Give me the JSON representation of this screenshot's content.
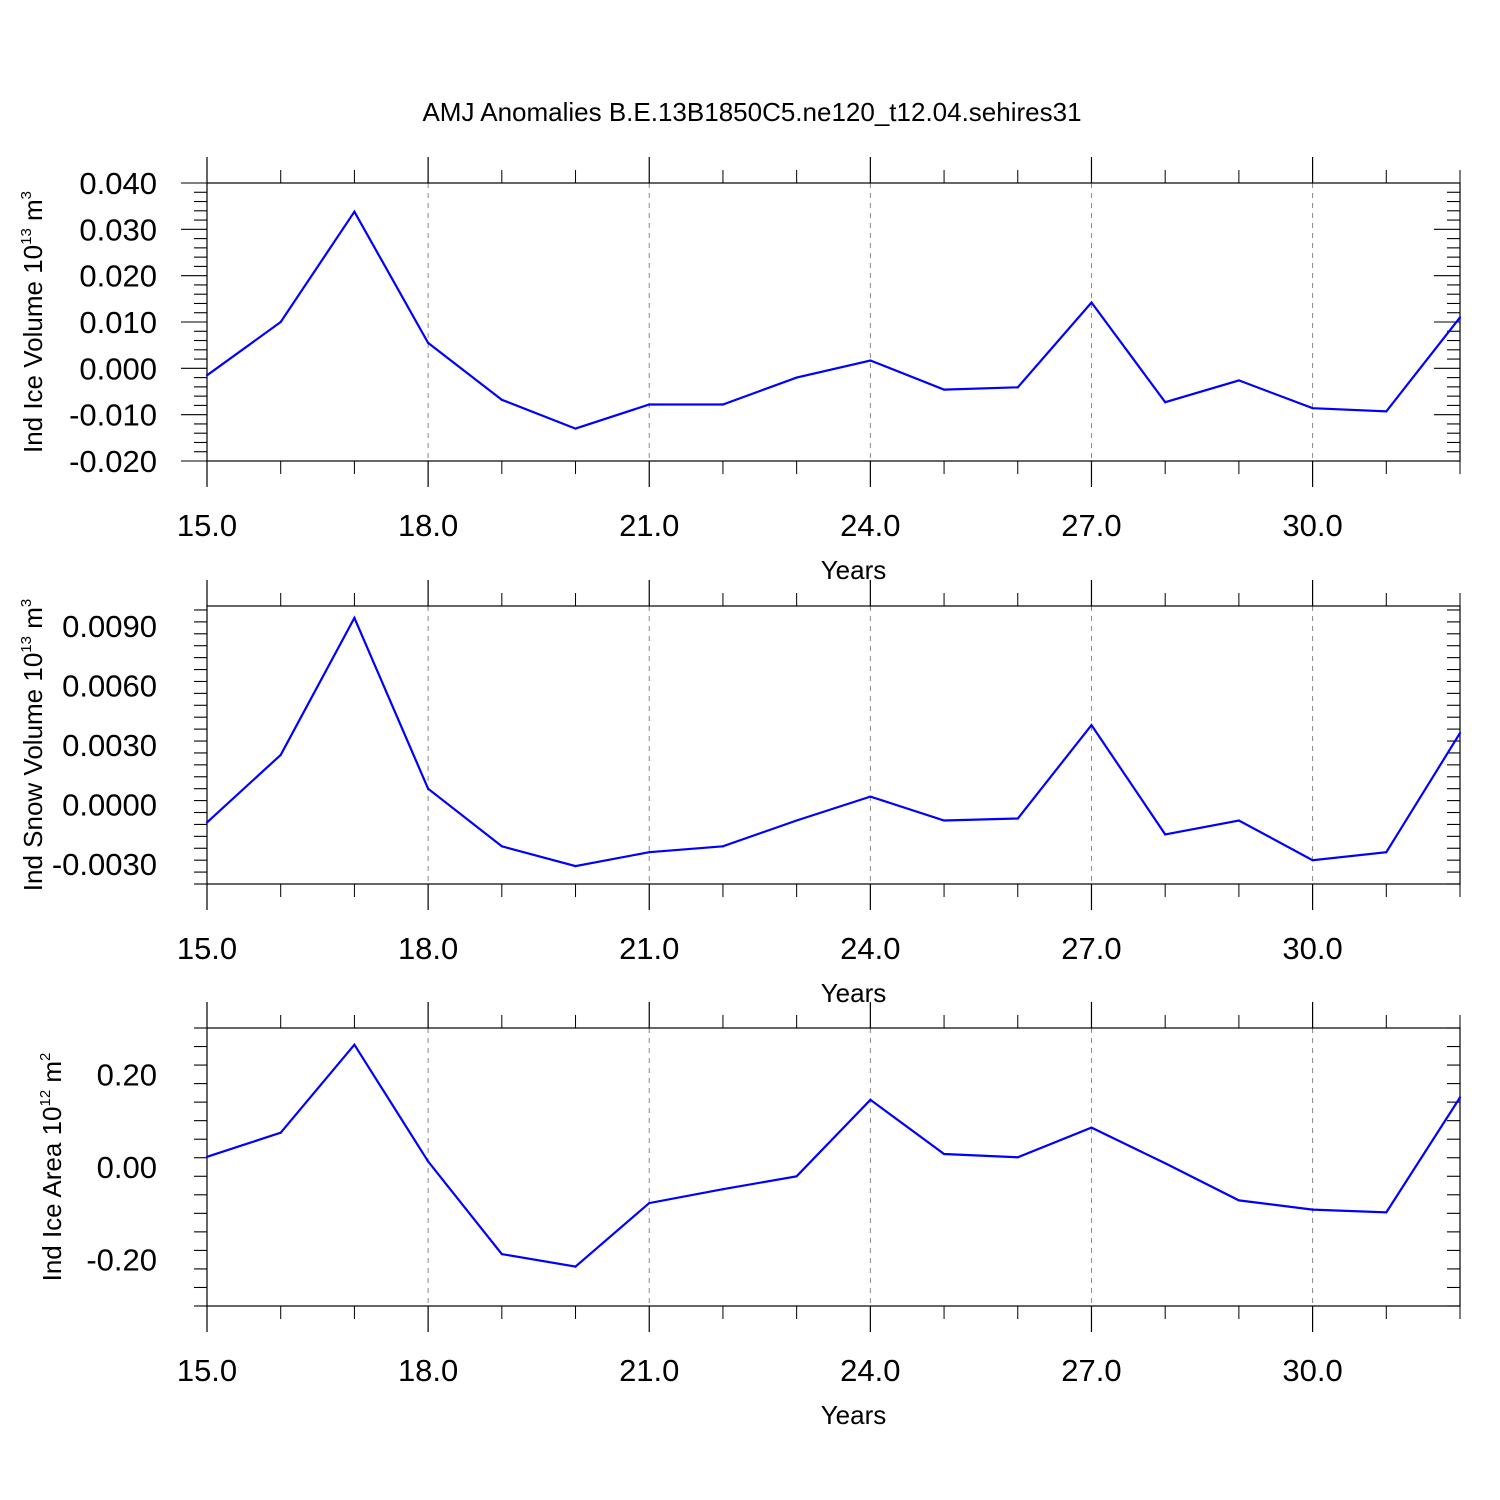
{
  "title": "AMJ Anomalies B.E.13B1850C5.ne120_t12.04.sehires31",
  "colors": {
    "series": "#0000ff",
    "grid": "#888888",
    "axis": "#000000"
  },
  "chart_data": [
    {
      "type": "line",
      "ylabel": {
        "text": "Ind Ice Volume 10",
        "exp1": "13",
        "mid": " m",
        "exp2": "3"
      },
      "xlabel": "Years",
      "xlim": [
        15,
        32
      ],
      "ylim": [
        -0.02,
        0.04
      ],
      "xticks": [
        15,
        18,
        21,
        24,
        27,
        30
      ],
      "xtick_labels": [
        "15.0",
        "18.0",
        "21.0",
        "24.0",
        "27.0",
        "30.0"
      ],
      "yticks": [
        -0.02,
        -0.01,
        0.0,
        0.01,
        0.02,
        0.03,
        0.04
      ],
      "ytick_labels": [
        "-0.020",
        "-0.010",
        "0.000",
        "0.010",
        "0.020",
        "0.030",
        "0.040"
      ],
      "grid": "vertical dashed",
      "x": [
        15,
        16,
        17,
        18,
        19,
        20,
        21,
        22,
        23,
        24,
        25,
        26,
        27,
        28,
        29,
        30,
        31,
        32
      ],
      "values": [
        -0.0015,
        0.01,
        0.0338,
        0.0055,
        -0.0068,
        -0.013,
        -0.0078,
        -0.0078,
        -0.002,
        0.0017,
        -0.0046,
        -0.0041,
        0.0142,
        -0.0073,
        -0.0026,
        -0.0086,
        -0.0093,
        0.011
      ]
    },
    {
      "type": "line",
      "ylabel": {
        "text": "Ind Snow Volume 10",
        "exp1": "13",
        "mid": " m",
        "exp2": "3"
      },
      "xlabel": "Years",
      "xlim": [
        15,
        32
      ],
      "ylim": [
        -0.004,
        0.01
      ],
      "xticks": [
        15,
        18,
        21,
        24,
        27,
        30
      ],
      "xtick_labels": [
        "15.0",
        "18.0",
        "21.0",
        "24.0",
        "27.0",
        "30.0"
      ],
      "yticks": [
        -0.003,
        0.0,
        0.003,
        0.006,
        0.009
      ],
      "ytick_labels": [
        "-0.0030",
        "0.0000",
        "0.0030",
        "0.0060",
        "0.0090"
      ],
      "grid": "vertical dashed",
      "x": [
        15,
        16,
        17,
        18,
        19,
        20,
        21,
        22,
        23,
        24,
        25,
        26,
        27,
        28,
        29,
        30,
        31,
        32
      ],
      "values": [
        -0.0009,
        0.0025,
        0.0094,
        0.0008,
        -0.0021,
        -0.0031,
        -0.0024,
        -0.0021,
        -0.0008,
        0.0004,
        -0.0008,
        -0.0007,
        0.004,
        -0.0015,
        -0.0008,
        -0.0028,
        -0.0024,
        0.0036
      ]
    },
    {
      "type": "line",
      "ylabel": {
        "text": "Ind Ice Area 10",
        "exp1": "12",
        "mid": " m",
        "exp2": "2"
      },
      "xlabel": "Years",
      "xlim": [
        15,
        32
      ],
      "ylim": [
        -0.3,
        0.3
      ],
      "xticks": [
        15,
        18,
        21,
        24,
        27,
        30
      ],
      "xtick_labels": [
        "15.0",
        "18.0",
        "21.0",
        "24.0",
        "27.0",
        "30.0"
      ],
      "yticks": [
        -0.2,
        0.0,
        0.2
      ],
      "ytick_labels": [
        "-0.20",
        "0.00",
        "0.20"
      ],
      "grid": "vertical dashed",
      "x": [
        15,
        16,
        17,
        18,
        19,
        20,
        21,
        22,
        23,
        24,
        25,
        26,
        27,
        28,
        29,
        30,
        31,
        32
      ],
      "values": [
        0.022,
        0.074,
        0.264,
        0.012,
        -0.188,
        -0.215,
        -0.078,
        -0.048,
        -0.02,
        0.145,
        0.028,
        0.021,
        0.085,
        0.008,
        -0.072,
        -0.092,
        -0.098,
        0.15
      ]
    }
  ]
}
